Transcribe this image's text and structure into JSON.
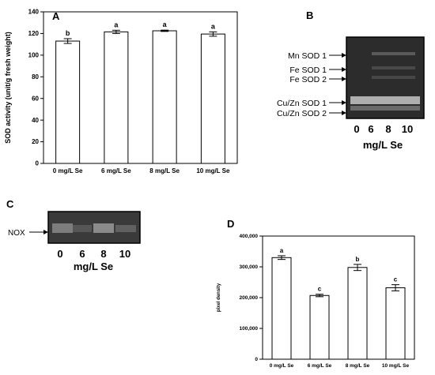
{
  "panels": {
    "a": {
      "letter": "A"
    },
    "b": {
      "letter": "B",
      "band_labels": [
        "Mn SOD 1",
        "Fe SOD 1",
        "Fe SOD 2",
        "Cu/Zn SOD 1",
        "Cu/Zn SOD 2"
      ],
      "lanes": [
        "0",
        "6",
        "8",
        "10"
      ],
      "xlabel": "mg/L Se"
    },
    "c": {
      "letter": "C",
      "band_label": "NOX",
      "lanes": [
        "0",
        "6",
        "8",
        "10"
      ],
      "xlabel": "mg/L Se"
    },
    "d": {
      "letter": "D"
    }
  },
  "chart_data": [
    {
      "id": "A",
      "type": "bar",
      "categories": [
        "0 mg/L Se",
        "6 mg/L Se",
        "8 mg/L Se",
        "10 mg/L Se"
      ],
      "values": [
        113,
        121.5,
        122.5,
        119.5
      ],
      "errors": [
        2.2,
        1.5,
        0.6,
        2.0
      ],
      "annotations": [
        "b",
        "a",
        "a",
        "a"
      ],
      "ylabel": "SOD activity (unit/g fresh weight)",
      "ylim": [
        0,
        140
      ],
      "yticks": [
        0,
        20,
        40,
        60,
        80,
        100,
        120,
        140
      ]
    },
    {
      "id": "D",
      "type": "bar",
      "categories": [
        "0 mg/L Se",
        "6 mg/L Se",
        "8 mg/L Se",
        "10 mg/L Se"
      ],
      "values": [
        330000,
        207000,
        298000,
        232000
      ],
      "errors": [
        6000,
        4000,
        10000,
        10000
      ],
      "annotations": [
        "a",
        "c",
        "b",
        "c"
      ],
      "ylabel": "pixel density",
      "ylim": [
        0,
        400000
      ],
      "yticks": [
        "0",
        "100,000",
        "200,000",
        "300,000",
        "400,000"
      ]
    }
  ]
}
